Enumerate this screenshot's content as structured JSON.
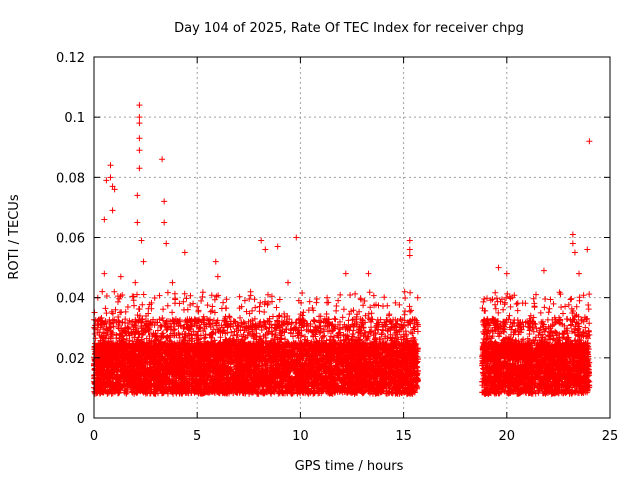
{
  "chart_data": {
    "type": "scatter",
    "title": "Day 104 of 2025, Rate Of TEC Index for receiver chpg",
    "xlabel": "GPS time / hours",
    "ylabel": "ROTI / TECUs",
    "xlim": [
      0,
      25
    ],
    "ylim": [
      0,
      0.12
    ],
    "x_ticks": [
      0,
      5,
      10,
      15,
      20,
      25
    ],
    "x_tick_labels": [
      "0",
      "5",
      "10",
      "15",
      "20",
      "25"
    ],
    "y_ticks": [
      0,
      0.02,
      0.04,
      0.06,
      0.08,
      0.1,
      0.12
    ],
    "y_tick_labels": [
      "0",
      "0.02",
      "0.04",
      "0.06",
      "0.08",
      "0.1",
      "0.12"
    ],
    "grid": true,
    "marker": "+",
    "series_color": "#ff0000",
    "series": [
      {
        "name": "ROTI",
        "segments": [
          {
            "x_start": 0.0,
            "x_end": 15.7,
            "baseline_min": 0.005,
            "baseline_max": 0.03
          },
          {
            "x_start": 18.8,
            "x_end": 24.0,
            "baseline_min": 0.005,
            "baseline_max": 0.03
          }
        ],
        "notable_points": [
          {
            "x": 0.4,
            "y": 0.042
          },
          {
            "x": 0.5,
            "y": 0.048
          },
          {
            "x": 0.5,
            "y": 0.066
          },
          {
            "x": 0.6,
            "y": 0.079
          },
          {
            "x": 0.8,
            "y": 0.08
          },
          {
            "x": 0.8,
            "y": 0.084
          },
          {
            "x": 0.9,
            "y": 0.077
          },
          {
            "x": 0.9,
            "y": 0.069
          },
          {
            "x": 1.0,
            "y": 0.076
          },
          {
            "x": 1.3,
            "y": 0.047
          },
          {
            "x": 2.0,
            "y": 0.045
          },
          {
            "x": 2.1,
            "y": 0.065
          },
          {
            "x": 2.1,
            "y": 0.074
          },
          {
            "x": 2.2,
            "y": 0.083
          },
          {
            "x": 2.2,
            "y": 0.089
          },
          {
            "x": 2.2,
            "y": 0.093
          },
          {
            "x": 2.2,
            "y": 0.098
          },
          {
            "x": 2.2,
            "y": 0.1
          },
          {
            "x": 2.2,
            "y": 0.104
          },
          {
            "x": 2.3,
            "y": 0.059
          },
          {
            "x": 2.4,
            "y": 0.052
          },
          {
            "x": 3.3,
            "y": 0.086
          },
          {
            "x": 3.4,
            "y": 0.072
          },
          {
            "x": 3.4,
            "y": 0.065
          },
          {
            "x": 3.5,
            "y": 0.058
          },
          {
            "x": 3.8,
            "y": 0.045
          },
          {
            "x": 4.4,
            "y": 0.055
          },
          {
            "x": 4.8,
            "y": 0.038
          },
          {
            "x": 5.9,
            "y": 0.052
          },
          {
            "x": 6.0,
            "y": 0.047
          },
          {
            "x": 8.1,
            "y": 0.059
          },
          {
            "x": 8.3,
            "y": 0.056
          },
          {
            "x": 8.9,
            "y": 0.057
          },
          {
            "x": 9.4,
            "y": 0.045
          },
          {
            "x": 9.8,
            "y": 0.06
          },
          {
            "x": 12.2,
            "y": 0.048
          },
          {
            "x": 13.3,
            "y": 0.048
          },
          {
            "x": 15.3,
            "y": 0.059
          },
          {
            "x": 15.3,
            "y": 0.056
          },
          {
            "x": 15.3,
            "y": 0.054
          },
          {
            "x": 19.6,
            "y": 0.05
          },
          {
            "x": 20.0,
            "y": 0.048
          },
          {
            "x": 21.8,
            "y": 0.049
          },
          {
            "x": 23.2,
            "y": 0.061
          },
          {
            "x": 23.2,
            "y": 0.058
          },
          {
            "x": 23.3,
            "y": 0.055
          },
          {
            "x": 23.5,
            "y": 0.048
          },
          {
            "x": 23.9,
            "y": 0.056
          },
          {
            "x": 24.0,
            "y": 0.092
          }
        ]
      }
    ]
  }
}
